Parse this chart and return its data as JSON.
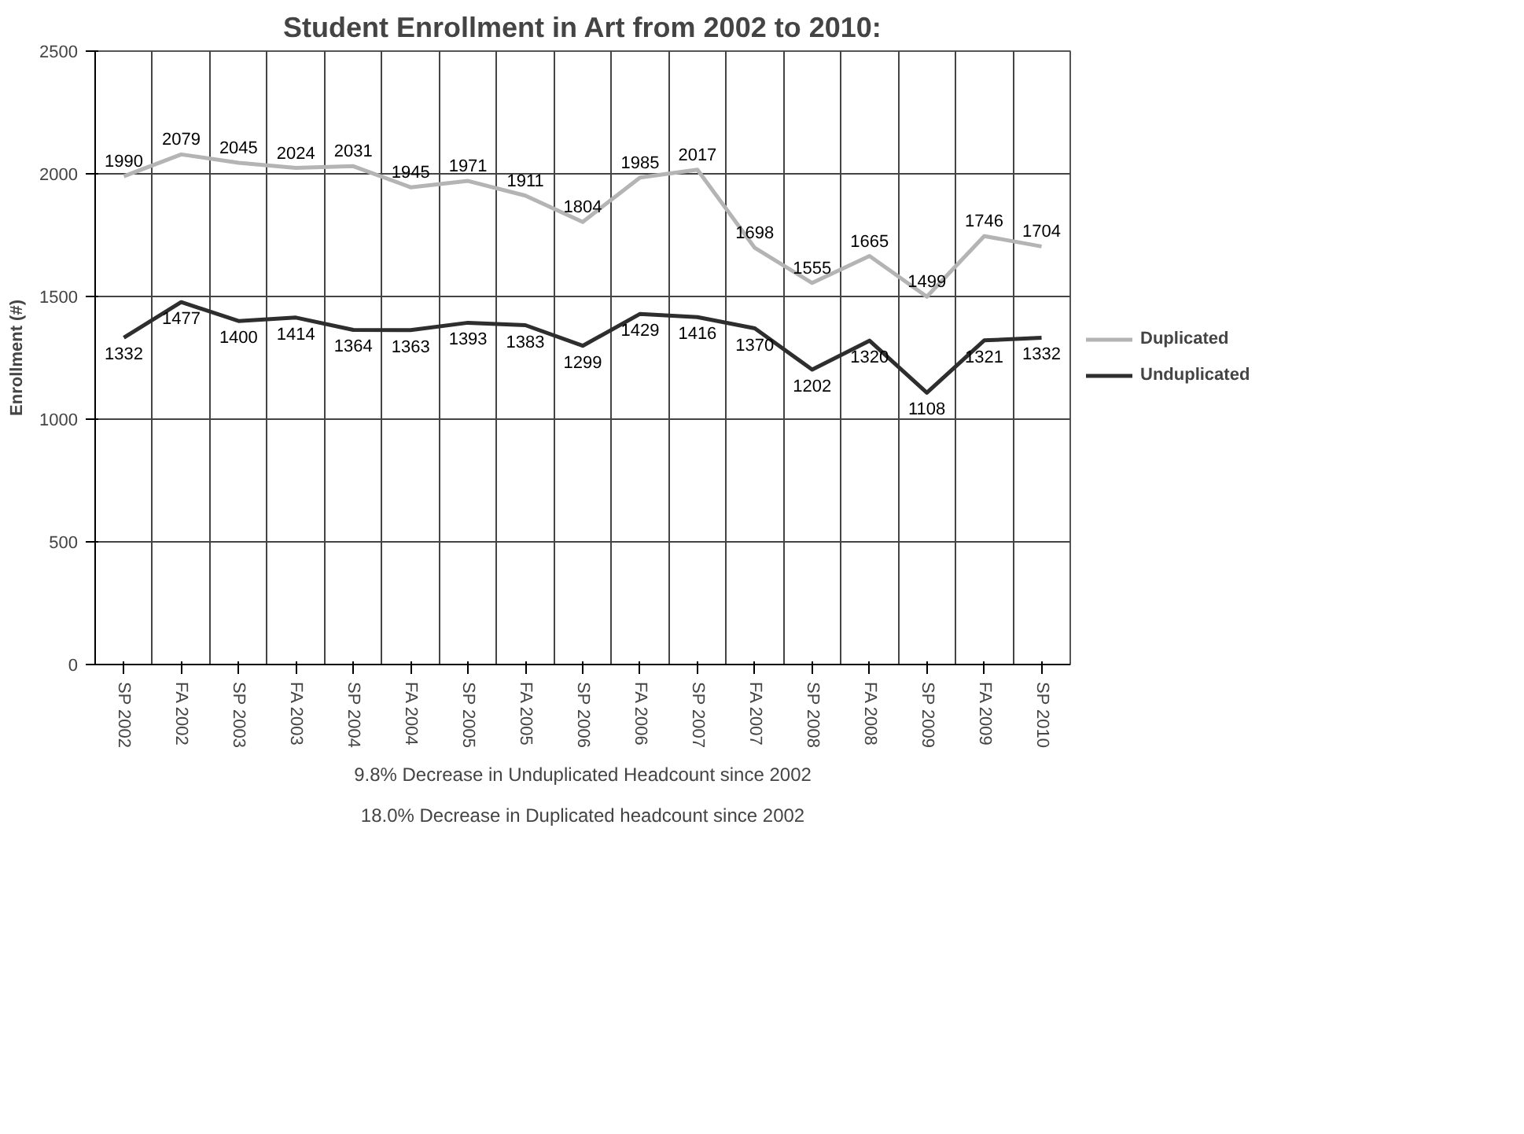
{
  "chart_data": {
    "type": "line",
    "title": "Student Enrollment in Art from 2002 to 2010:",
    "ylabel": "Enrollment (#)",
    "categories": [
      "SP 2002",
      "FA 2002",
      "SP 2003",
      "FA 2003",
      "SP 2004",
      "FA 2004",
      "SP 2005",
      "FA 2005",
      "SP 2006",
      "FA 2006",
      "SP 2007",
      "FA 2007",
      "SP 2008",
      "FA 2008",
      "SP 2009",
      "FA 2009",
      "SP 2010"
    ],
    "series": [
      {
        "name": "Duplicated",
        "color": "#b4b4b4",
        "values": [
          1990,
          2079,
          2045,
          2024,
          2031,
          1945,
          1971,
          1911,
          1804,
          1985,
          2017,
          1698,
          1555,
          1665,
          1499,
          1746,
          1704
        ]
      },
      {
        "name": "Unduplicated",
        "color": "#2e2e2e",
        "values": [
          1332,
          1477,
          1400,
          1414,
          1364,
          1363,
          1393,
          1383,
          1299,
          1429,
          1416,
          1370,
          1202,
          1320,
          1108,
          1321,
          1332
        ]
      }
    ],
    "ylim": [
      0,
      2500
    ],
    "yticks": [
      0,
      500,
      1000,
      1500,
      2000,
      2500
    ],
    "grid": true,
    "legend": "right",
    "marker": "none",
    "line_style": "solid",
    "data_labels": true,
    "annotations": [
      "18.0% Decrease in Duplicated headcount since 2002",
      "9.8% Decrease in Unduplicated Headcount since 2002"
    ]
  }
}
